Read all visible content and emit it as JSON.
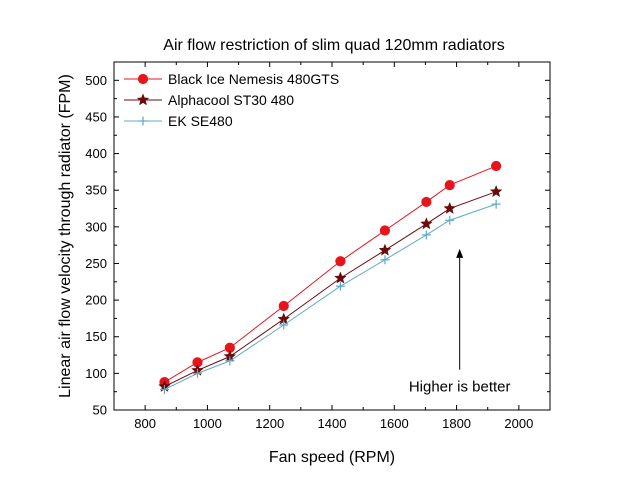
{
  "chart_data": {
    "type": "line",
    "title": "Air flow restriction of slim quad 120mm radiators",
    "xlabel": "Fan speed (RPM)",
    "ylabel": "Linear air flow velocity through radiator (FPM)",
    "xlim": [
      700,
      2100
    ],
    "ylim": [
      50,
      525
    ],
    "xticks": [
      800,
      1000,
      1200,
      1400,
      1600,
      1800,
      2000
    ],
    "yticks": [
      50,
      100,
      150,
      200,
      250,
      300,
      350,
      400,
      450,
      500
    ],
    "grid": false,
    "legend_position": "top-left",
    "series": [
      {
        "name": "Black Ice Nemesis 480GTS",
        "color": "#e8141c",
        "marker": "circle",
        "x": [
          862,
          968,
          1072,
          1245,
          1427,
          1570,
          1703,
          1778,
          1927
        ],
        "y": [
          88,
          115,
          135,
          192,
          253,
          295,
          334,
          357,
          383
        ]
      },
      {
        "name": "Alphacool ST30 480",
        "color": "#6b0a0a",
        "marker": "star",
        "x": [
          862,
          968,
          1072,
          1245,
          1427,
          1570,
          1703,
          1778,
          1927
        ],
        "y": [
          82,
          104,
          123,
          174,
          230,
          268,
          304,
          325,
          348
        ]
      },
      {
        "name": "EK SE480",
        "color": "#5fa8c8",
        "marker": "plus",
        "x": [
          862,
          968,
          1072,
          1245,
          1427,
          1570,
          1703,
          1778,
          1927
        ],
        "y": [
          78,
          100,
          117,
          166,
          219,
          255,
          289,
          309,
          331
        ]
      }
    ],
    "annotations": [
      {
        "text": "Higher is better",
        "arrow": {
          "x": 1810,
          "y_from": 105,
          "y_to": 270
        }
      }
    ]
  }
}
